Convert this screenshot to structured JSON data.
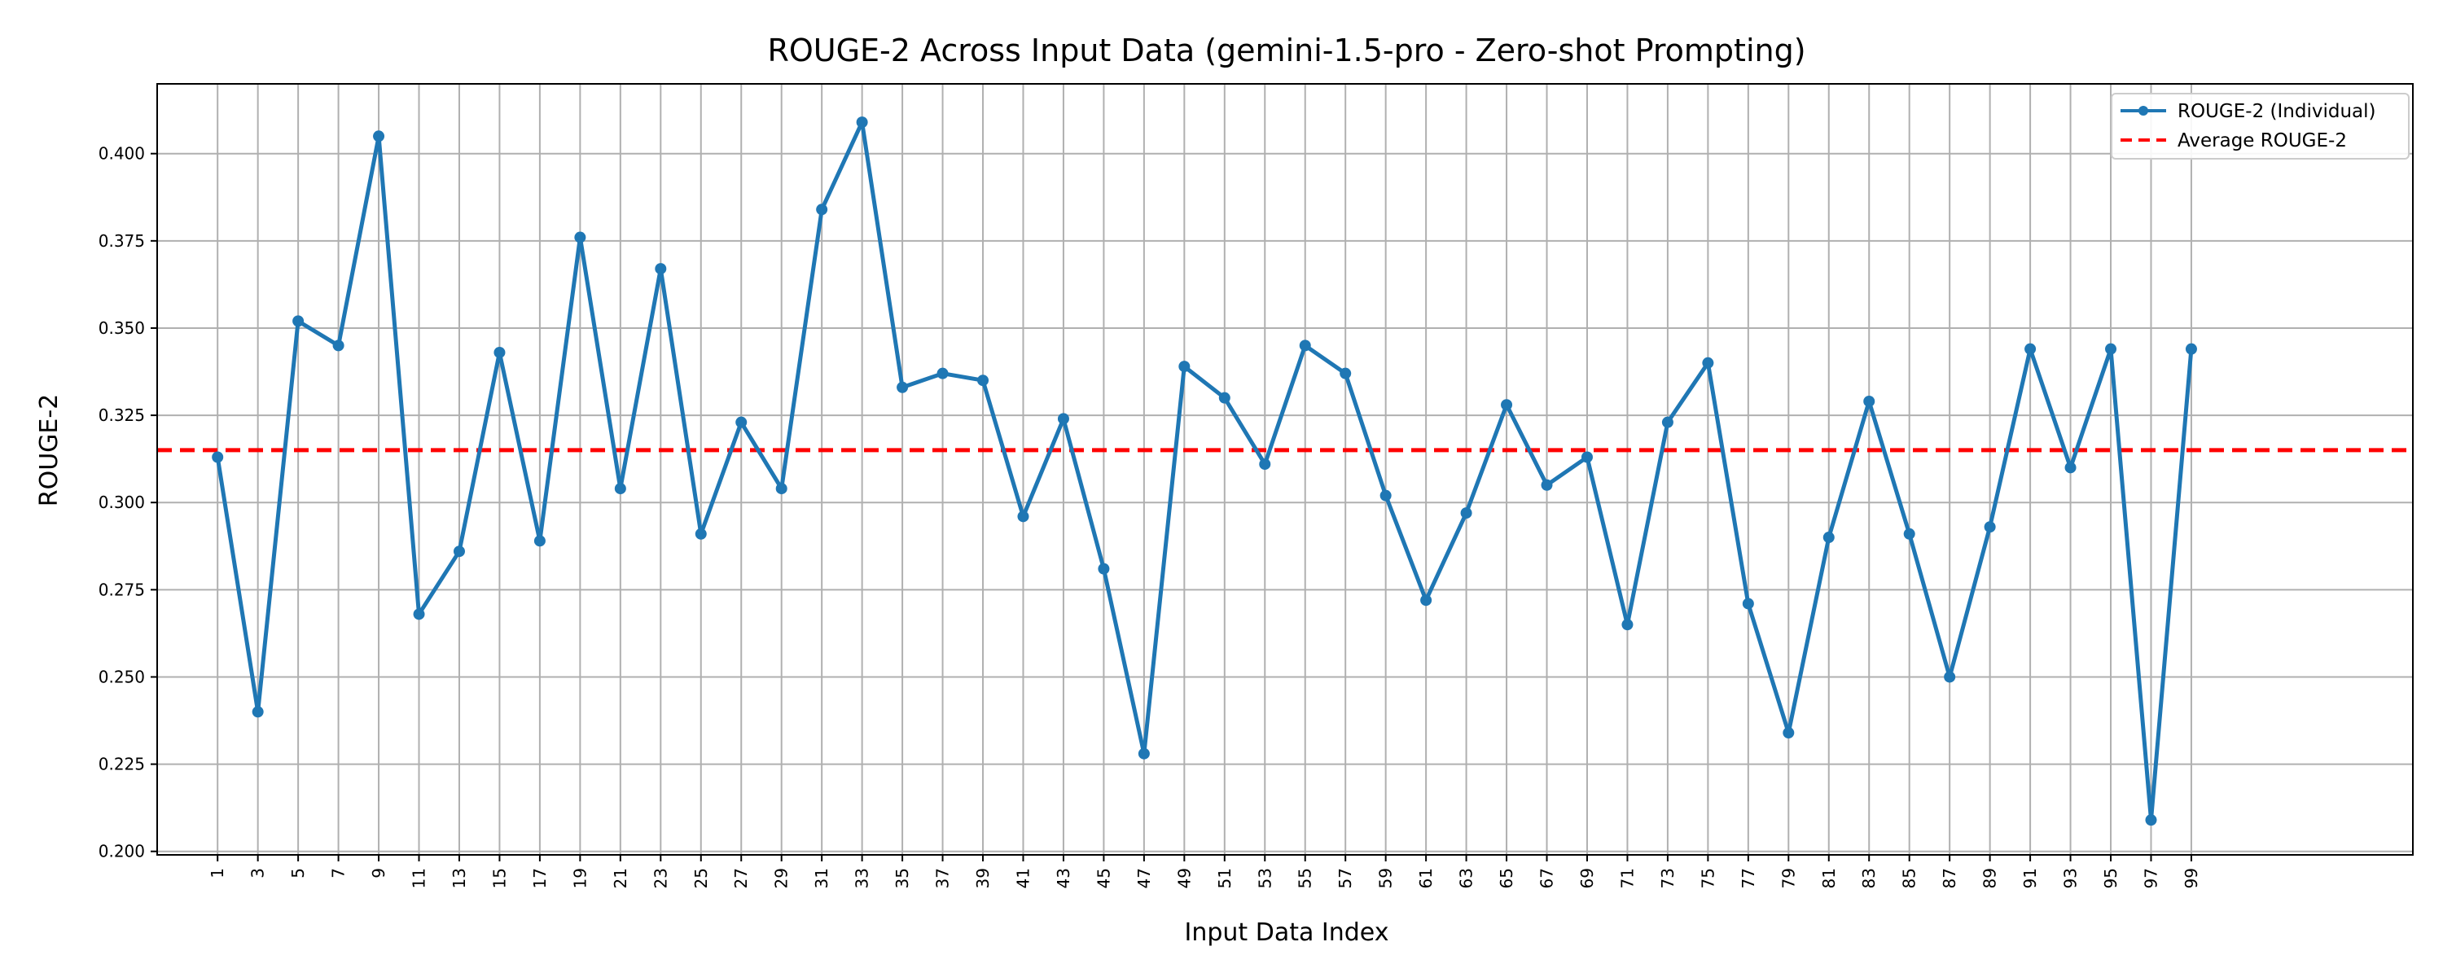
{
  "chart_data": {
    "type": "line",
    "title": "ROUGE-2 Across Input Data (gemini-1.5-pro - Zero-shot Prompting)",
    "xlabel": "Input Data Index",
    "ylabel": "ROUGE-2",
    "ylim": [
      0.199,
      0.42
    ],
    "xlim": [
      -1.5,
      54.5
    ],
    "yticks": [
      0.2,
      0.225,
      0.25,
      0.275,
      0.3,
      0.325,
      0.35,
      0.375,
      0.4
    ],
    "ytick_labels": [
      "0.200",
      "0.225",
      "0.250",
      "0.275",
      "0.300",
      "0.325",
      "0.350",
      "0.375",
      "0.400"
    ],
    "categories": [
      "1",
      "3",
      "5",
      "7",
      "9",
      "11",
      "13",
      "15",
      "17",
      "19",
      "21",
      "23",
      "25",
      "27",
      "29",
      "31",
      "33",
      "35",
      "37",
      "39",
      "41",
      "43",
      "45",
      "47",
      "49",
      "51",
      "53",
      "55",
      "57",
      "59",
      "61",
      "63",
      "65",
      "67",
      "69",
      "71",
      "73",
      "75",
      "77",
      "79",
      "81",
      "83",
      "85",
      "87",
      "89",
      "91",
      "93",
      "95",
      "97",
      "99"
    ],
    "grid": true,
    "legend_position": "top-right",
    "series": [
      {
        "name": "ROUGE-2 (Individual)",
        "style": "solid-with-markers",
        "color": "#1f77b4",
        "values": [
          0.313,
          0.24,
          0.352,
          0.345,
          0.405,
          0.268,
          0.286,
          0.343,
          0.289,
          0.376,
          0.304,
          0.367,
          0.291,
          0.323,
          0.304,
          0.384,
          0.409,
          0.333,
          0.337,
          0.335,
          0.296,
          0.324,
          0.281,
          0.228,
          0.339,
          0.33,
          0.311,
          0.345,
          0.337,
          0.302,
          0.272,
          0.297,
          0.328,
          0.305,
          0.313,
          0.265,
          0.323,
          0.34,
          0.271,
          0.234,
          0.29,
          0.329,
          0.291,
          0.25,
          0.293,
          0.344,
          0.31,
          0.344,
          0.209,
          0.344
        ]
      },
      {
        "name": "Average ROUGE-2",
        "style": "dashed",
        "color": "#ff0000",
        "value": 0.315
      }
    ]
  }
}
